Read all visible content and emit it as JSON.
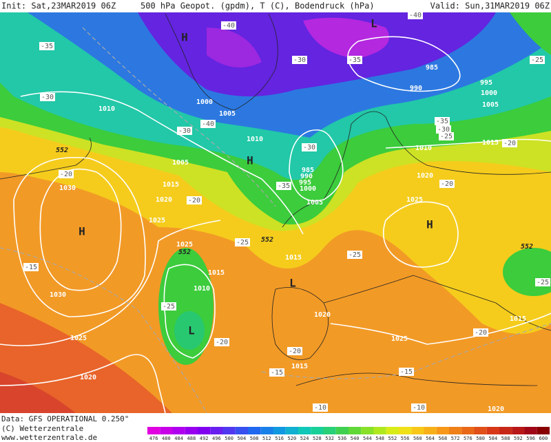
{
  "header": {
    "init": "Init: Sat,23MAR2019 06Z",
    "title": "500 hPa Geopot. (gpdm), T (C), Bodendruck (hPa)",
    "valid": "Valid: Sun,31MAR2019 06Z"
  },
  "footer": {
    "data": "Data: GFS OPERATIONAL 0.250°",
    "copyright": "(C) Wetterzentrale",
    "url": "www.wetterzentrale.de"
  },
  "colorbar": {
    "ticks": [
      476,
      480,
      484,
      488,
      492,
      496,
      500,
      504,
      508,
      512,
      516,
      520,
      524,
      528,
      532,
      536,
      540,
      544,
      548,
      552,
      556,
      560,
      564,
      568,
      572,
      576,
      580,
      584,
      588,
      592,
      596,
      600
    ]
  },
  "labels": {
    "pressure": [
      "1010",
      "1000",
      "1005",
      "1010",
      "1005",
      "985",
      "990",
      "995",
      "1000",
      "1005",
      "1010",
      "1015",
      "985",
      "990",
      "995",
      "1000",
      "1005",
      "1020",
      "1025",
      "1030",
      "1020",
      "1015",
      "1025",
      "1025",
      "1015",
      "1010",
      "1015",
      "1030",
      "1025",
      "1020",
      "1020",
      "1025",
      "1015",
      "1015",
      "1020"
    ],
    "geopotential": [
      "552",
      "552",
      "552",
      "552"
    ],
    "temperature": [
      "-40",
      "-40",
      "-35",
      "-35",
      "-30",
      "-30",
      "-40",
      "-30",
      "-35",
      "-30",
      "-25",
      "-30",
      "-35",
      "-25",
      "-20",
      "-20",
      "-20",
      "-20",
      "-25",
      "-25",
      "-15",
      "-25",
      "-20",
      "-20",
      "-15",
      "-15",
      "-20",
      "-10",
      "-10",
      "-25"
    ],
    "highs": [
      "H",
      "H",
      "H",
      "H"
    ],
    "lows": [
      "L",
      "L",
      "L"
    ]
  }
}
